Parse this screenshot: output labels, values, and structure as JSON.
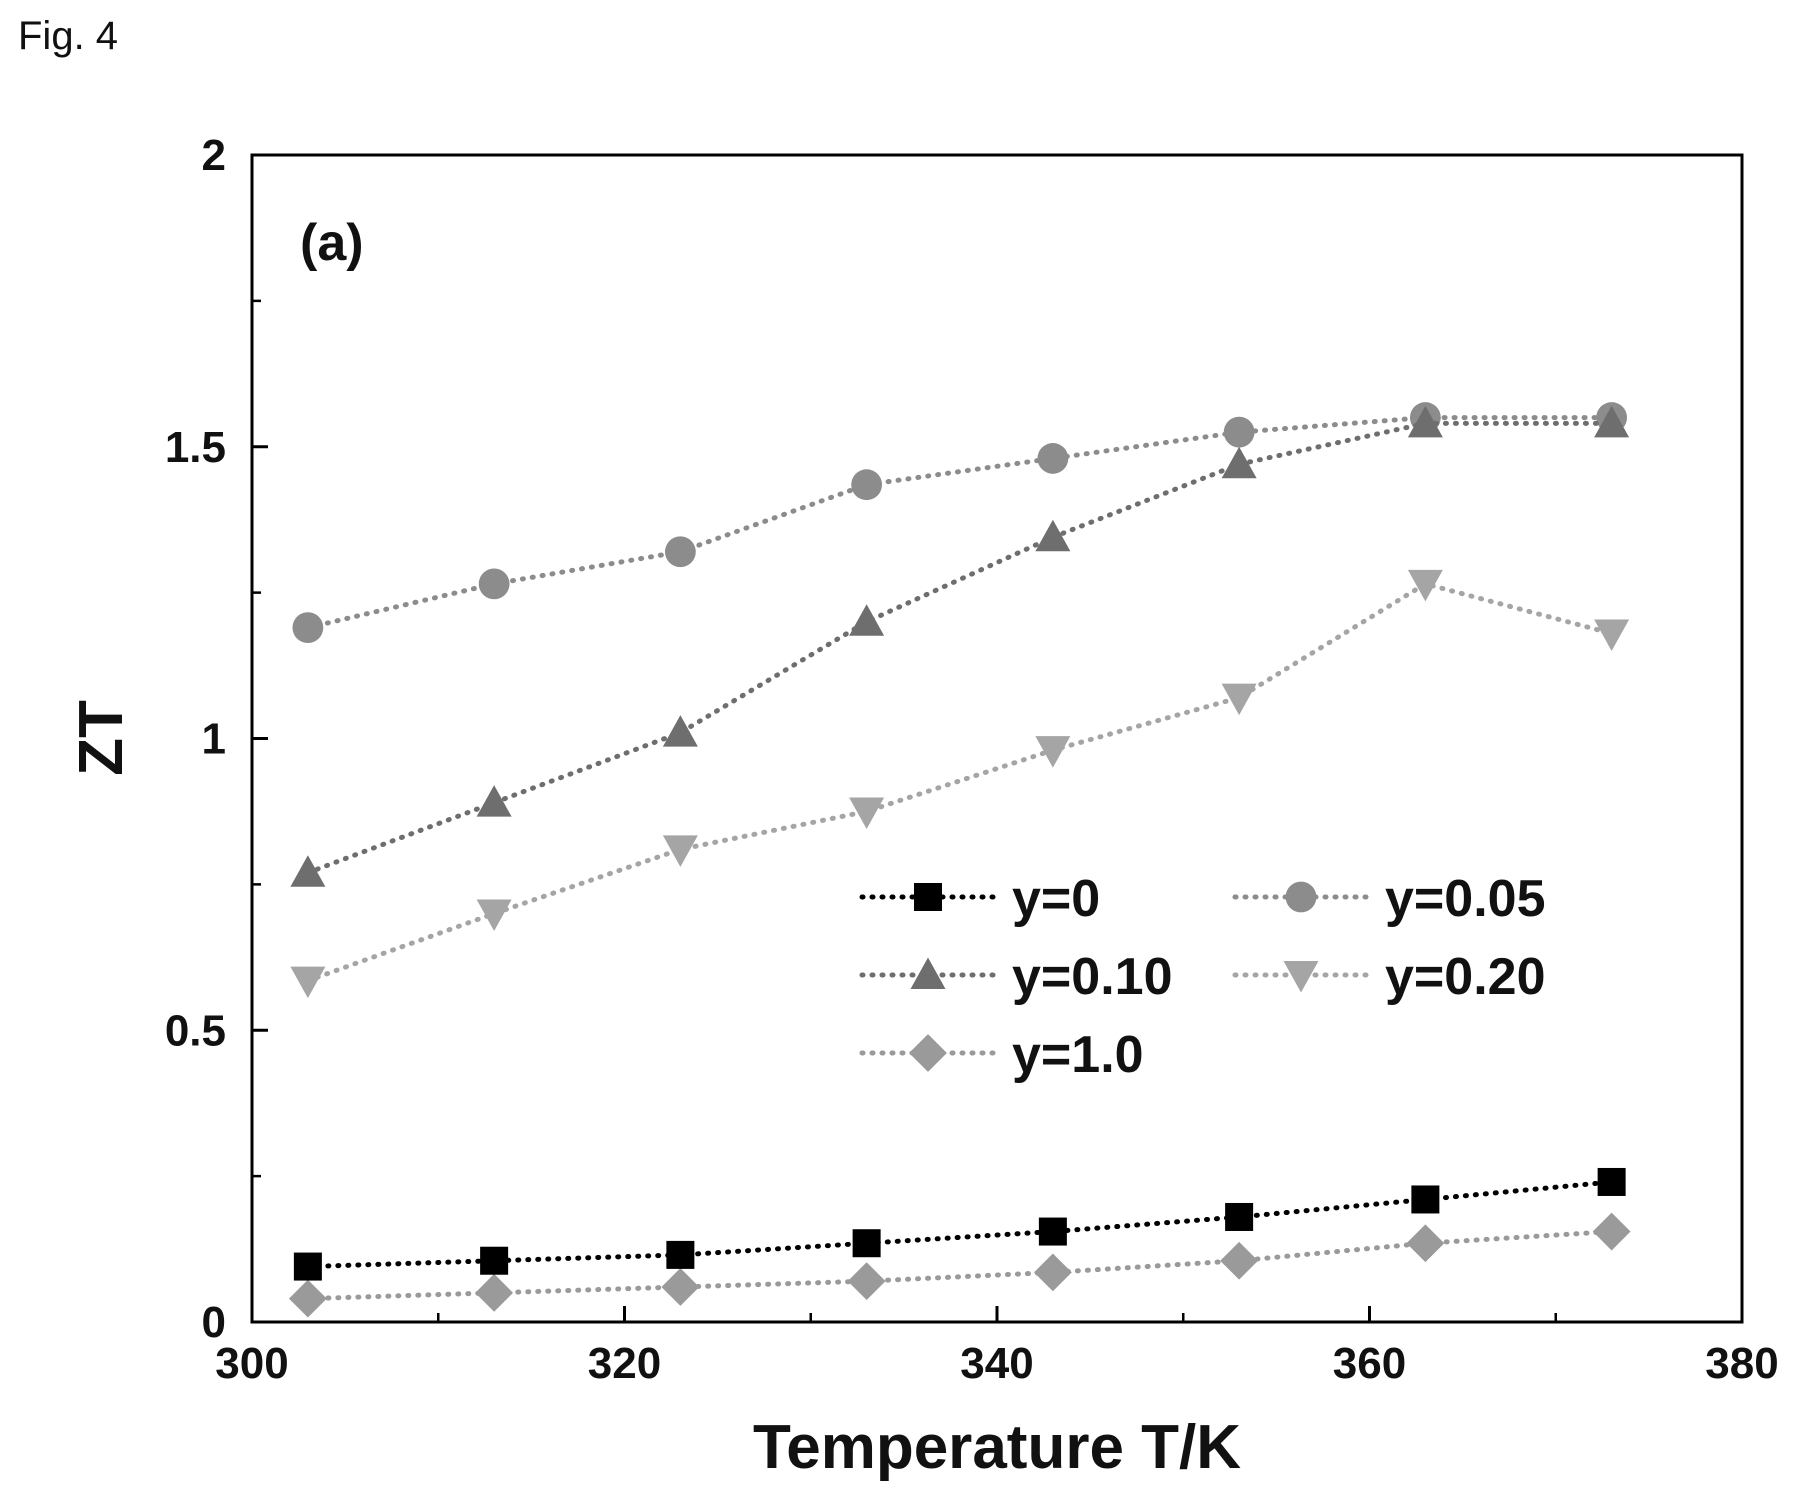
{
  "figure": {
    "label": "Fig. 4"
  },
  "chart_data": {
    "type": "line",
    "panel_label": "(a)",
    "xlabel": "Temperature T/K",
    "ylabel": "ZT",
    "xlim": [
      300,
      380
    ],
    "ylim": [
      0,
      2
    ],
    "x_ticks": [
      300,
      320,
      340,
      360,
      380
    ],
    "y_ticks": [
      0,
      0.5,
      1,
      1.5,
      2
    ],
    "y_tick_labels": [
      "0",
      "0.5",
      "1",
      "1.5",
      "2"
    ],
    "x_minor_step": 10,
    "y_minor_step": 0.25,
    "grid": false,
    "legend_position": "center-right",
    "x": [
      303,
      313,
      323,
      333,
      343,
      353,
      363,
      373
    ],
    "series": [
      {
        "name": "y=0",
        "marker": "square",
        "color": "#000000",
        "values": [
          0.095,
          0.105,
          0.115,
          0.135,
          0.155,
          0.18,
          0.21,
          0.24
        ]
      },
      {
        "name": "y=0.05",
        "marker": "circle",
        "color": "#8c8c8c",
        "values": [
          1.19,
          1.265,
          1.32,
          1.435,
          1.48,
          1.525,
          1.55,
          1.55
        ]
      },
      {
        "name": "y=0.10",
        "marker": "triangle-up",
        "color": "#6e6e6e",
        "values": [
          0.77,
          0.89,
          1.01,
          1.2,
          1.345,
          1.47,
          1.54,
          1.54
        ]
      },
      {
        "name": "y=0.20",
        "marker": "triangle-down",
        "color": "#a5a5a5",
        "values": [
          0.585,
          0.7,
          0.81,
          0.875,
          0.98,
          1.07,
          1.265,
          1.18
        ]
      },
      {
        "name": "y=1.0",
        "marker": "diamond",
        "color": "#9a9a9a",
        "values": [
          0.04,
          0.05,
          0.06,
          0.07,
          0.085,
          0.105,
          0.135,
          0.155
        ]
      }
    ]
  }
}
